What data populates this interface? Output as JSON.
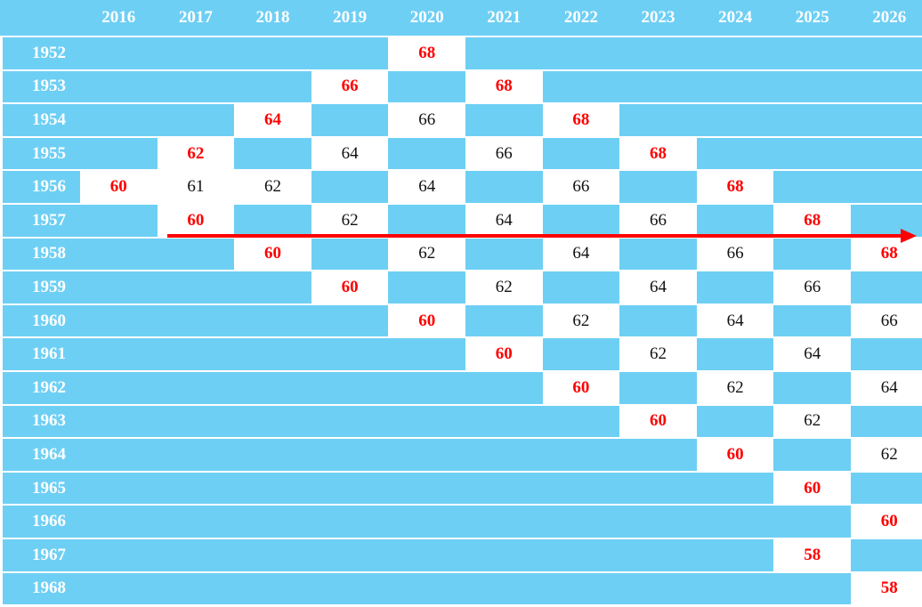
{
  "colors": {
    "cell_blue": "#6ecff4",
    "highlight_red": "#ff0000",
    "text_dark": "#111111"
  },
  "columns": [
    "2016",
    "2017",
    "2018",
    "2019",
    "2020",
    "2021",
    "2022",
    "2023",
    "2024",
    "2025",
    "2026"
  ],
  "rows": [
    {
      "year": "1952",
      "cells": [
        null,
        null,
        null,
        null,
        {
          "v": "68",
          "red": true
        },
        null,
        null,
        null,
        null,
        null,
        null
      ]
    },
    {
      "year": "1953",
      "cells": [
        null,
        null,
        null,
        {
          "v": "66",
          "red": true
        },
        null,
        {
          "v": "68",
          "red": true
        },
        null,
        null,
        null,
        null,
        null
      ]
    },
    {
      "year": "1954",
      "cells": [
        null,
        null,
        {
          "v": "64",
          "red": true
        },
        null,
        {
          "v": "66"
        },
        null,
        {
          "v": "68",
          "red": true
        },
        null,
        null,
        null,
        null
      ]
    },
    {
      "year": "1955",
      "cells": [
        null,
        {
          "v": "62",
          "red": true
        },
        null,
        {
          "v": "64"
        },
        null,
        {
          "v": "66"
        },
        null,
        {
          "v": "68",
          "red": true
        },
        null,
        null,
        null
      ]
    },
    {
      "year": "1956",
      "cells": [
        {
          "v": "60",
          "red": true
        },
        {
          "v": "61"
        },
        {
          "v": "62"
        },
        null,
        {
          "v": "64"
        },
        null,
        {
          "v": "66"
        },
        null,
        {
          "v": "68",
          "red": true
        },
        null,
        null
      ]
    },
    {
      "year": "1957",
      "cells": [
        null,
        {
          "v": "60",
          "red": true
        },
        null,
        {
          "v": "62"
        },
        null,
        {
          "v": "64"
        },
        null,
        {
          "v": "66"
        },
        null,
        {
          "v": "68",
          "red": true
        },
        null
      ]
    },
    {
      "year": "1958",
      "cells": [
        null,
        null,
        {
          "v": "60",
          "red": true
        },
        null,
        {
          "v": "62"
        },
        null,
        {
          "v": "64"
        },
        null,
        {
          "v": "66"
        },
        null,
        {
          "v": "68",
          "red": true
        }
      ]
    },
    {
      "year": "1959",
      "cells": [
        null,
        null,
        null,
        {
          "v": "60",
          "red": true
        },
        null,
        {
          "v": "62"
        },
        null,
        {
          "v": "64"
        },
        null,
        {
          "v": "66"
        },
        null
      ]
    },
    {
      "year": "1960",
      "cells": [
        null,
        null,
        null,
        null,
        {
          "v": "60",
          "red": true
        },
        null,
        {
          "v": "62"
        },
        null,
        {
          "v": "64"
        },
        null,
        {
          "v": "66"
        }
      ]
    },
    {
      "year": "1961",
      "cells": [
        null,
        null,
        null,
        null,
        null,
        {
          "v": "60",
          "red": true
        },
        null,
        {
          "v": "62"
        },
        null,
        {
          "v": "64"
        },
        null
      ]
    },
    {
      "year": "1962",
      "cells": [
        null,
        null,
        null,
        null,
        null,
        null,
        {
          "v": "60",
          "red": true
        },
        null,
        {
          "v": "62"
        },
        null,
        {
          "v": "64"
        }
      ]
    },
    {
      "year": "1963",
      "cells": [
        null,
        null,
        null,
        null,
        null,
        null,
        null,
        {
          "v": "60",
          "red": true
        },
        null,
        {
          "v": "62"
        },
        null
      ]
    },
    {
      "year": "1964",
      "cells": [
        null,
        null,
        null,
        null,
        null,
        null,
        null,
        null,
        {
          "v": "60",
          "red": true
        },
        null,
        {
          "v": "62"
        }
      ]
    },
    {
      "year": "1965",
      "cells": [
        null,
        null,
        null,
        null,
        null,
        null,
        null,
        null,
        null,
        {
          "v": "60",
          "red": true
        },
        null
      ]
    },
    {
      "year": "1966",
      "cells": [
        null,
        null,
        null,
        null,
        null,
        null,
        null,
        null,
        null,
        null,
        {
          "v": "60",
          "red": true
        }
      ]
    },
    {
      "year": "1967",
      "cells": [
        null,
        null,
        null,
        null,
        null,
        null,
        null,
        null,
        null,
        {
          "v": "58",
          "red": true
        },
        null
      ]
    },
    {
      "year": "1968",
      "cells": [
        null,
        null,
        null,
        null,
        null,
        null,
        null,
        null,
        null,
        null,
        {
          "v": "58",
          "red": true
        }
      ]
    }
  ]
}
